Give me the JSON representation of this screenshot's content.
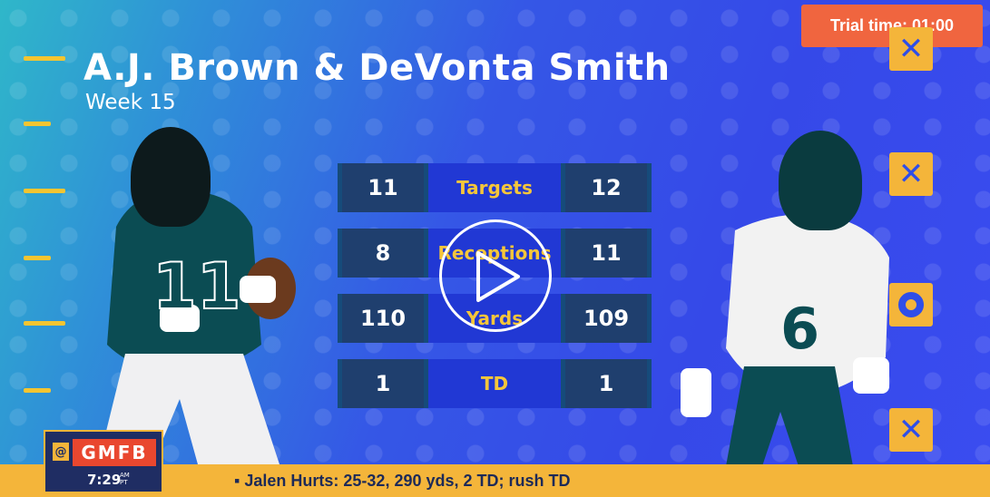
{
  "title": "A.J. Brown & DeVonta Smith",
  "subtitle": "Week 15",
  "trial": "Trial time: 01:00",
  "stats": [
    {
      "left": "11",
      "label": "Targets",
      "right": "12"
    },
    {
      "left": "8",
      "label": "Receptions",
      "right": "11"
    },
    {
      "left": "110",
      "label": "Yards",
      "right": "109"
    },
    {
      "left": "1",
      "label": "TD",
      "right": "1"
    }
  ],
  "players": {
    "left": {
      "jersey": "11"
    },
    "right": {
      "jersey": "6"
    }
  },
  "ticker": {
    "text": "▪ Jalen Hurts: 25-32, 290 yds, 2 TD; rush TD"
  },
  "bug": {
    "at": "@",
    "logo": "GMFB",
    "time": "7:29",
    "ampm": "AM",
    "tz": "PT"
  },
  "marks": [
    "✕",
    "✕",
    "o",
    "✕"
  ],
  "colors": {
    "accent": "#f4b53a",
    "trial": "#f0653f",
    "label": "#f6c63a"
  }
}
